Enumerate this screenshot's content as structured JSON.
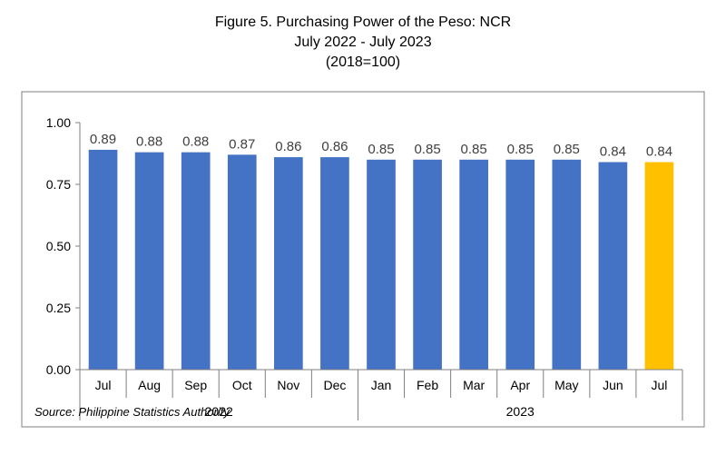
{
  "chart_data": {
    "type": "bar",
    "title": "Figure 5. Purchasing Power of the Peso: NCR",
    "subtitle": "July 2022 - July 2023",
    "subtitle2": "(2018=100)",
    "categories": [
      "Jul",
      "Aug",
      "Sep",
      "Oct",
      "Nov",
      "Dec",
      "Jan",
      "Feb",
      "Mar",
      "Apr",
      "May",
      "Jun",
      "Jul"
    ],
    "values": [
      0.89,
      0.88,
      0.88,
      0.87,
      0.86,
      0.86,
      0.85,
      0.85,
      0.85,
      0.85,
      0.85,
      0.84,
      0.84
    ],
    "data_labels": [
      "0.89",
      "0.88",
      "0.88",
      "0.87",
      "0.86",
      "0.86",
      "0.85",
      "0.85",
      "0.85",
      "0.85",
      "0.85",
      "0.84",
      "0.84"
    ],
    "years": [
      {
        "label": "2022",
        "start": 0,
        "end": 5
      },
      {
        "label": "2023",
        "start": 6,
        "end": 12
      }
    ],
    "ylim": [
      0,
      1.0
    ],
    "yticks": [
      0.0,
      0.25,
      0.5,
      0.75,
      1.0
    ],
    "ytick_labels": [
      "0.00",
      "0.25",
      "0.50",
      "0.75",
      "1.00"
    ],
    "grid": false,
    "legend": "none",
    "colors": {
      "bar": "#4472C4",
      "highlight": "#FFC000",
      "axis": "#7F7F7F",
      "frame": "#7F7F7F",
      "label": "#404040"
    },
    "highlight_index": 12
  },
  "source": "Source: Philippine Statistics Authority"
}
